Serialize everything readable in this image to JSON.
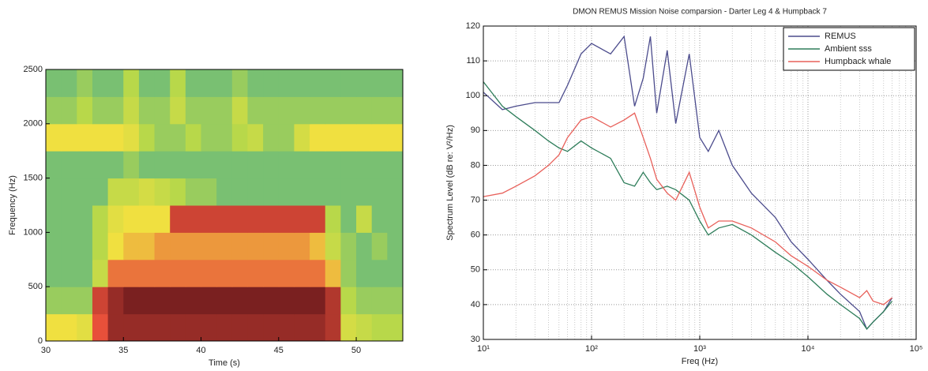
{
  "chart_data": [
    {
      "type": "heatmap",
      "xlabel": "Time (s)",
      "ylabel": "Frequency (Hz)",
      "xlim": [
        30,
        53
      ],
      "ylim": [
        0,
        2500
      ],
      "xticks": [
        30,
        35,
        40,
        45,
        50
      ],
      "yticks": [
        0,
        500,
        1000,
        1500,
        2000,
        2500
      ],
      "x": [
        30.5,
        31.5,
        32.5,
        33.5,
        34.5,
        35.5,
        36.5,
        37.5,
        38.5,
        39.5,
        40.5,
        41.5,
        42.5,
        43.5,
        44.5,
        45.5,
        46.5,
        47.5,
        48.5,
        49.5,
        50.5,
        51.5,
        52.5
      ],
      "y": [
        125,
        375,
        625,
        875,
        1125,
        1375,
        1625,
        1875,
        2125,
        2375
      ],
      "z": [
        [
          0.6,
          0.6,
          0.55,
          0.8,
          0.95,
          0.95,
          0.95,
          0.95,
          0.95,
          0.95,
          0.95,
          0.95,
          0.95,
          0.95,
          0.95,
          0.95,
          0.95,
          0.95,
          0.9,
          0.5,
          0.45,
          0.4,
          0.4
        ],
        [
          0.35,
          0.35,
          0.35,
          0.85,
          0.95,
          1,
          1,
          1,
          1,
          1,
          1,
          1,
          1,
          1,
          1,
          1,
          1,
          1,
          0.9,
          0.4,
          0.35,
          0.35,
          0.35
        ],
        [
          0.3,
          0.3,
          0.3,
          0.45,
          0.75,
          0.75,
          0.75,
          0.75,
          0.75,
          0.75,
          0.75,
          0.75,
          0.75,
          0.75,
          0.75,
          0.75,
          0.75,
          0.75,
          0.65,
          0.35,
          0.3,
          0.3,
          0.3
        ],
        [
          0.3,
          0.3,
          0.3,
          0.4,
          0.6,
          0.65,
          0.65,
          0.7,
          0.7,
          0.7,
          0.7,
          0.7,
          0.7,
          0.7,
          0.7,
          0.7,
          0.7,
          0.65,
          0.45,
          0.35,
          0.3,
          0.35,
          0.3
        ],
        [
          0.3,
          0.3,
          0.3,
          0.4,
          0.55,
          0.6,
          0.6,
          0.6,
          0.85,
          0.85,
          0.85,
          0.85,
          0.85,
          0.85,
          0.85,
          0.85,
          0.85,
          0.85,
          0.4,
          0.3,
          0.45,
          0.3,
          0.3
        ],
        [
          0.3,
          0.3,
          0.3,
          0.3,
          0.45,
          0.45,
          0.5,
          0.45,
          0.4,
          0.35,
          0.35,
          0.3,
          0.3,
          0.3,
          0.3,
          0.3,
          0.3,
          0.3,
          0.3,
          0.3,
          0.3,
          0.3,
          0.3
        ],
        [
          0.3,
          0.3,
          0.3,
          0.3,
          0.3,
          0.35,
          0.3,
          0.3,
          0.3,
          0.3,
          0.3,
          0.3,
          0.3,
          0.3,
          0.3,
          0.3,
          0.3,
          0.3,
          0.3,
          0.3,
          0.3,
          0.3,
          0.3
        ],
        [
          0.6,
          0.6,
          0.6,
          0.6,
          0.6,
          0.55,
          0.4,
          0.35,
          0.35,
          0.4,
          0.35,
          0.35,
          0.4,
          0.45,
          0.35,
          0.35,
          0.5,
          0.6,
          0.6,
          0.6,
          0.6,
          0.6,
          0.6
        ],
        [
          0.35,
          0.35,
          0.4,
          0.35,
          0.35,
          0.45,
          0.35,
          0.35,
          0.45,
          0.35,
          0.35,
          0.35,
          0.45,
          0.35,
          0.35,
          0.35,
          0.35,
          0.35,
          0.35,
          0.35,
          0.35,
          0.35,
          0.35
        ],
        [
          0.3,
          0.3,
          0.35,
          0.3,
          0.3,
          0.4,
          0.3,
          0.3,
          0.4,
          0.3,
          0.3,
          0.3,
          0.35,
          0.3,
          0.3,
          0.3,
          0.3,
          0.3,
          0.3,
          0.3,
          0.3,
          0.3,
          0.3
        ]
      ],
      "colormap": [
        "#2a6fd0",
        "#3aa89a",
        "#b8d84a",
        "#f0e040",
        "#e8503a",
        "#7a2020"
      ]
    },
    {
      "type": "line",
      "title": "DMON REMUS Mission Noise comparsion - Darter Leg 4 & Humpback 7",
      "xlabel": "Freq (Hz)",
      "ylabel": "Spectrum Level (dB re: V²/Hz)",
      "xscale": "log",
      "grid": true,
      "legend": "upper right",
      "xlim": [
        10,
        100000
      ],
      "ylim": [
        30,
        120
      ],
      "xticks": [
        {
          "value": 10,
          "label": "10¹"
        },
        {
          "value": 100,
          "label": "10²"
        },
        {
          "value": 1000,
          "label": "10³"
        },
        {
          "value": 10000,
          "label": "10⁴"
        },
        {
          "value": 100000,
          "label": "10⁵"
        }
      ],
      "yticks": [
        30,
        40,
        50,
        60,
        70,
        80,
        90,
        100,
        110,
        120
      ],
      "x": [
        10,
        15,
        20,
        30,
        40,
        50,
        60,
        80,
        100,
        150,
        200,
        250,
        300,
        350,
        400,
        500,
        600,
        800,
        1000,
        1200,
        1500,
        2000,
        3000,
        5000,
        7000,
        10000,
        15000,
        20000,
        30000,
        35000,
        40000,
        50000,
        60000
      ],
      "series": [
        {
          "name": "REMUS",
          "color": "#4b4b8c",
          "values": [
            101,
            96,
            97,
            98,
            98,
            98,
            103,
            112,
            115,
            112,
            117,
            97,
            105,
            117,
            95,
            113,
            92,
            112,
            88,
            84,
            90,
            80,
            72,
            65,
            58,
            53,
            47,
            43,
            38,
            33,
            35,
            38,
            42
          ]
        },
        {
          "name": "Ambient sss",
          "color": "#2e7d5a",
          "values": [
            104,
            97,
            94,
            90,
            87,
            85,
            84,
            87,
            85,
            82,
            75,
            74,
            78,
            75,
            73,
            74,
            73,
            70,
            64,
            60,
            62,
            63,
            60,
            55,
            52,
            48,
            43,
            40,
            36,
            33,
            35,
            38,
            41
          ]
        },
        {
          "name": "Humpback whale",
          "color": "#e8605a",
          "values": [
            71,
            72,
            74,
            77,
            80,
            83,
            88,
            93,
            94,
            91,
            93,
            95,
            88,
            82,
            76,
            72,
            70,
            78,
            68,
            62,
            64,
            64,
            62,
            58,
            54,
            51,
            47,
            45,
            42,
            44,
            41,
            40,
            42
          ]
        }
      ]
    }
  ]
}
